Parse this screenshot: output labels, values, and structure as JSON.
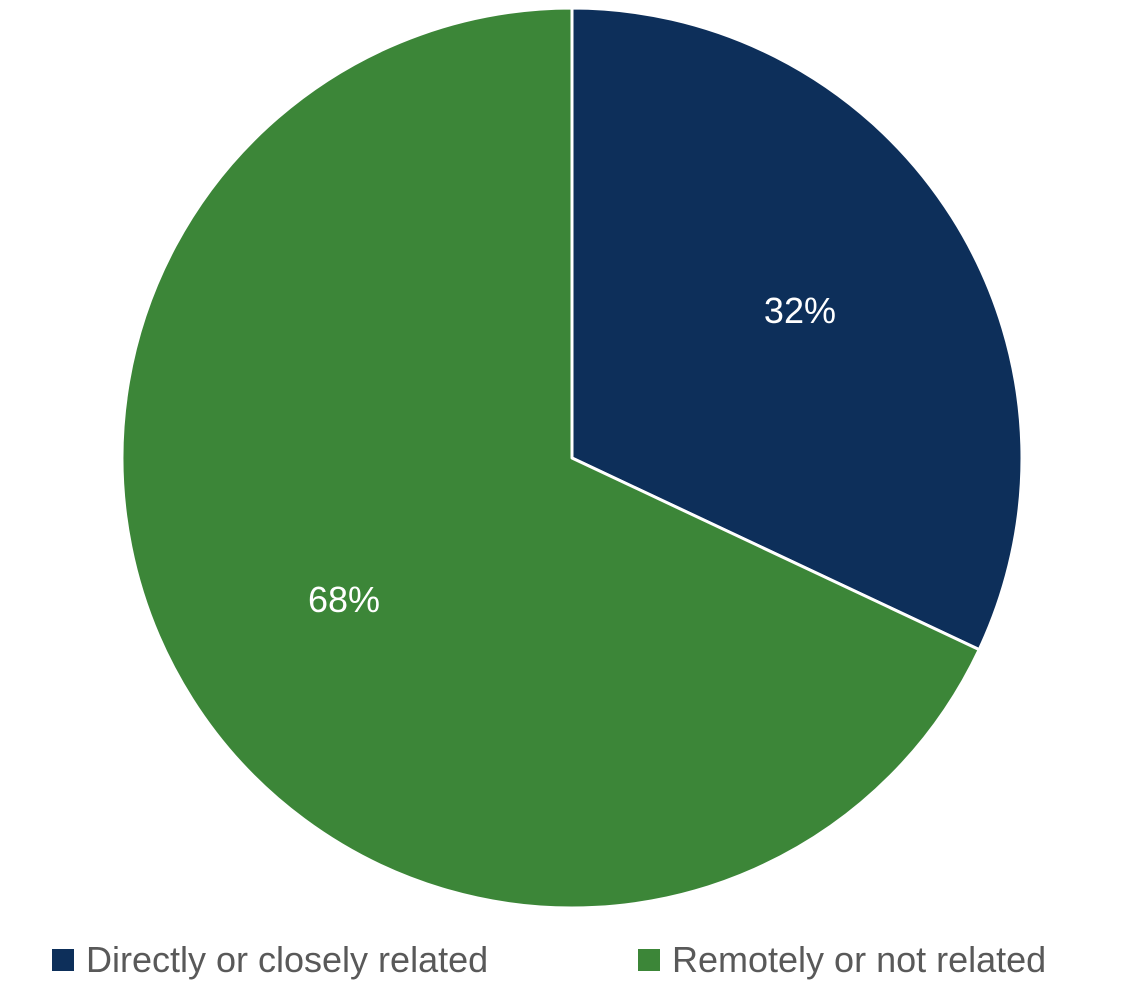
{
  "chart_data": {
    "type": "pie",
    "categories": [
      "Directly or closely related",
      "Remotely or not related"
    ],
    "values": [
      32,
      68
    ],
    "data_labels": [
      "32%",
      "68%"
    ],
    "colors": [
      "#0d2f5a",
      "#3c8638"
    ],
    "legend_position": "bottom",
    "start_angle": "12 o'clock",
    "direction": "clockwise"
  }
}
